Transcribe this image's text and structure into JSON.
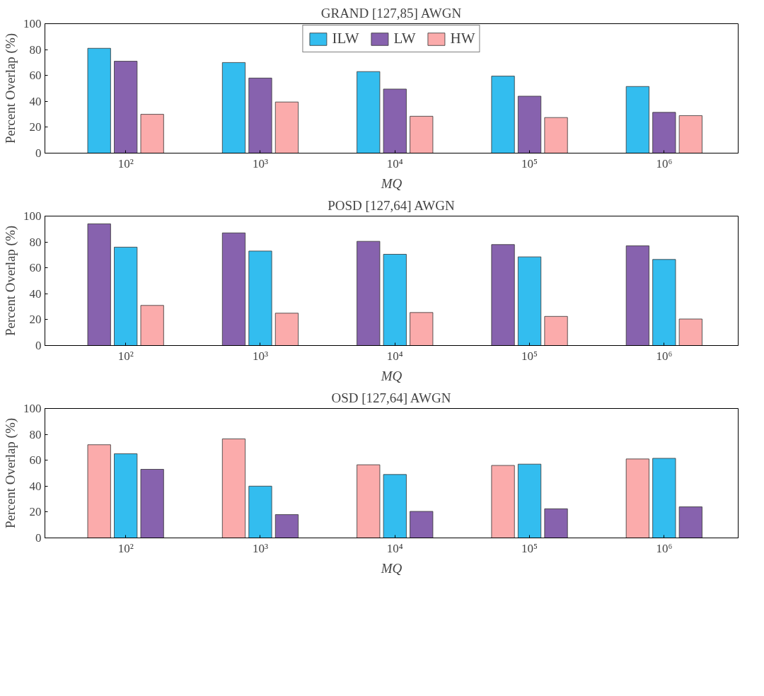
{
  "chart_data": [
    {
      "type": "bar",
      "title": "GRAND [127,85] AWGN",
      "xlabel": "MQ",
      "ylabel": "Percent Overlap (%)",
      "categories": [
        "10²",
        "10³",
        "10⁴",
        "10⁵",
        "10⁶"
      ],
      "ylim": [
        0,
        100
      ],
      "yticks": [
        0,
        20,
        40,
        60,
        80,
        100
      ],
      "grid": false,
      "legend": "top",
      "series": [
        {
          "name": "ILW",
          "color": "#33bdef",
          "values": [
            81,
            70,
            63,
            59.5,
            51.5
          ]
        },
        {
          "name": "LW",
          "color": "#8762ae",
          "values": [
            71,
            58,
            49.5,
            44,
            31.5
          ]
        },
        {
          "name": "HW",
          "color": "#fbabab",
          "values": [
            30,
            39.5,
            28.5,
            27.5,
            29
          ]
        }
      ]
    },
    {
      "type": "bar",
      "title": "POSD [127,64] AWGN",
      "xlabel": "MQ",
      "ylabel": "Percent Overlap (%)",
      "categories": [
        "10²",
        "10³",
        "10⁴",
        "10⁵",
        "10⁶"
      ],
      "ylim": [
        0,
        100
      ],
      "yticks": [
        0,
        20,
        40,
        60,
        80,
        100
      ],
      "grid": false,
      "legend": false,
      "series": [
        {
          "color": "#8762ae",
          "values": [
            94,
            87,
            80.5,
            78,
            77
          ]
        },
        {
          "color": "#33bdef",
          "values": [
            76,
            73,
            70.5,
            68.5,
            66.5
          ]
        },
        {
          "color": "#fbabab",
          "values": [
            31,
            25,
            25.5,
            22.5,
            20.5
          ]
        }
      ]
    },
    {
      "type": "bar",
      "title": "OSD [127,64] AWGN",
      "xlabel": "MQ",
      "ylabel": "Percent Overlap (%)",
      "categories": [
        "10²",
        "10³",
        "10⁴",
        "10⁵",
        "10⁶"
      ],
      "ylim": [
        0,
        100
      ],
      "yticks": [
        0,
        20,
        40,
        60,
        80,
        100
      ],
      "grid": false,
      "legend": false,
      "series": [
        {
          "color": "#fbabab",
          "values": [
            72,
            76.5,
            56.5,
            56,
            61
          ]
        },
        {
          "color": "#33bdef",
          "values": [
            65,
            40,
            49,
            57,
            61.5
          ]
        },
        {
          "color": "#8762ae",
          "values": [
            53,
            18,
            20.5,
            22.5,
            24
          ]
        }
      ]
    }
  ]
}
